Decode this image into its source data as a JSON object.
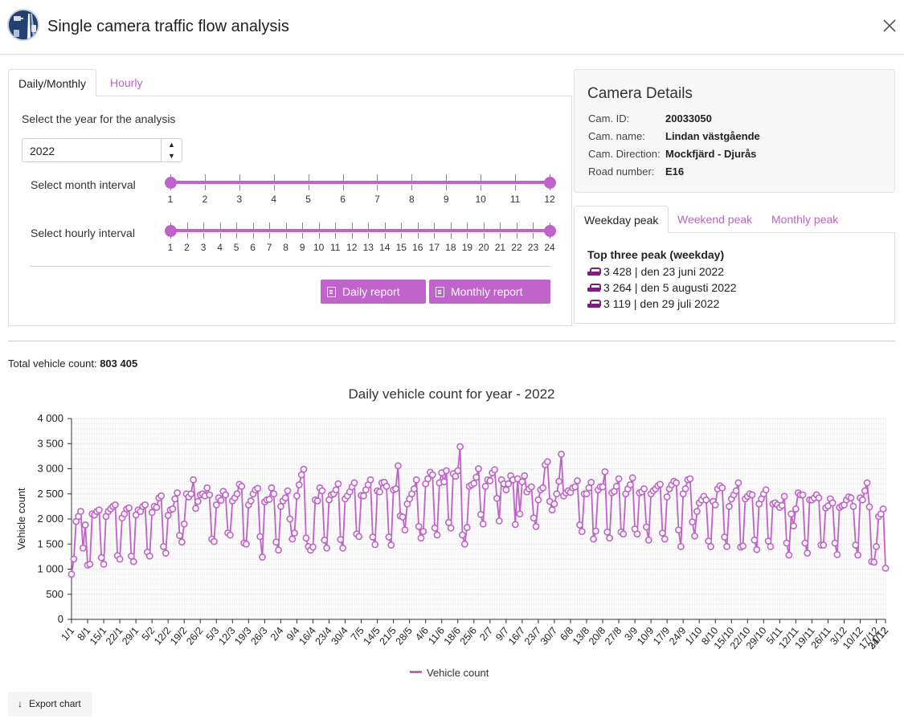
{
  "header": {
    "title": "Single camera traffic flow analysis",
    "logo_icon": "traffic-camera-logo-icon",
    "close_icon": "close-icon"
  },
  "analysis_tabs": [
    {
      "label": "Daily/Monthly",
      "active": true
    },
    {
      "label": "Hourly",
      "active": false
    }
  ],
  "year_section": {
    "label": "Select the year for the analysis",
    "value": "2022"
  },
  "month_slider": {
    "label": "Select month interval",
    "ticks": [
      "1",
      "2",
      "3",
      "4",
      "5",
      "6",
      "7",
      "8",
      "9",
      "10",
      "11",
      "12"
    ],
    "range": [
      1,
      12
    ]
  },
  "hour_slider": {
    "label": "Select hourly interval",
    "ticks": [
      "1",
      "2",
      "3",
      "4",
      "5",
      "6",
      "7",
      "8",
      "9",
      "10",
      "11",
      "12",
      "13",
      "14",
      "15",
      "16",
      "17",
      "18",
      "19",
      "20",
      "21",
      "22",
      "23",
      "24"
    ],
    "range": [
      1,
      24
    ]
  },
  "buttons": {
    "daily_report": "Daily report",
    "monthly_report": "Monthly report"
  },
  "camera_details": {
    "title": "Camera Details",
    "rows": [
      {
        "key": "Cam. ID:",
        "value": "20033050"
      },
      {
        "key": "Cam. name:",
        "value": "Lindan västgående"
      },
      {
        "key": "Cam. Direction:",
        "value": "Mockfjärd - Djurås"
      },
      {
        "key": "Road number:",
        "value": "E16"
      }
    ]
  },
  "peak_tabs": [
    {
      "label": "Weekday peak",
      "active": true
    },
    {
      "label": "Weekend peak",
      "active": false
    },
    {
      "label": "Monthly peak",
      "active": false
    }
  ],
  "peak": {
    "title": "Top three peak (weekday)",
    "entries": [
      "3 428 | den 23 juni 2022",
      "3 264 | den 5 augusti 2022",
      "3 119 | den 29 juli 2022"
    ]
  },
  "total": {
    "label": "Total vehicle count: ",
    "value": "803 405"
  },
  "export_label": "Export chart",
  "colors": {
    "accent": "#bf62c9",
    "car_icon": "#7a1f80"
  },
  "chart_data": {
    "type": "line",
    "title": "Daily vehicle count for year - 2022",
    "ylabel": "Vehicle count",
    "xlabel": "",
    "ylim": [
      0,
      4000
    ],
    "yticks": [
      "0",
      "500",
      "1 000",
      "1 500",
      "2 000",
      "2 500",
      "3 000",
      "3 500",
      "4 000"
    ],
    "x_tick_labels": [
      "1/1",
      "8/1",
      "15/1",
      "22/1",
      "29/1",
      "5/2",
      "12/2",
      "19/2",
      "26/2",
      "5/3",
      "12/3",
      "19/3",
      "26/3",
      "2/4",
      "9/4",
      "16/4",
      "23/4",
      "30/4",
      "7/5",
      "14/5",
      "21/5",
      "28/5",
      "4/6",
      "11/6",
      "18/6",
      "25/6",
      "2/7",
      "9/7",
      "16/7",
      "23/7",
      "30/7",
      "6/8",
      "13/8",
      "20/8",
      "27/8",
      "3/9",
      "10/9",
      "17/9",
      "24/9",
      "1/10",
      "8/10",
      "15/10",
      "22/10",
      "29/10",
      "5/11",
      "12/11",
      "19/11",
      "26/11",
      "3/12",
      "10/12",
      "17/12",
      "24/12",
      "31/12"
    ],
    "legend": "bottom-center",
    "grid": true,
    "series": [
      {
        "name": "Vehicle count",
        "color": "#bf62c9",
        "weekly_values": [
          [
            900,
            1200,
            1950,
            2050,
            2150,
            1420,
            1880
          ],
          [
            1080,
            1100,
            2100,
            2080,
            2150,
            2180,
            1230
          ],
          [
            1100,
            2050,
            2150,
            2200,
            2250,
            2280,
            1270
          ],
          [
            1200,
            2020,
            2100,
            2200,
            2220,
            1260,
            1150
          ],
          [
            2080,
            2180,
            2150,
            2250,
            2280,
            1340,
            1260
          ],
          [
            2130,
            2250,
            2230,
            2420,
            2460,
            1450,
            1320
          ],
          [
            2070,
            2180,
            2200,
            2400,
            2520,
            1670,
            1540
          ],
          [
            1900,
            2500,
            2440,
            2500,
            2780,
            2210,
            2350
          ],
          [
            2480,
            2500,
            2460,
            2620,
            2480,
            1600,
            1550
          ],
          [
            2280,
            2420,
            2370,
            2550,
            2480,
            1720,
            1680
          ],
          [
            2360,
            2420,
            2500,
            2690,
            2650,
            1520,
            1500
          ],
          [
            2280,
            2360,
            2500,
            2580,
            2610,
            1650,
            1240
          ],
          [
            2340,
            2380,
            2390,
            2620,
            2500,
            1540,
            1380
          ],
          [
            2250,
            2360,
            2420,
            2560,
            2000,
            1600,
            1720
          ],
          [
            2460,
            2680,
            2880,
            2990,
            1620,
            1450,
            1380
          ],
          [
            1440,
            2380,
            2360,
            2620,
            2560,
            1580,
            1420
          ],
          [
            2380,
            2480,
            2500,
            2580,
            2700,
            1590,
            1420
          ],
          [
            2400,
            2460,
            2540,
            2640,
            2720,
            1700,
            1650
          ],
          [
            2470,
            2460,
            2580,
            2680,
            2780,
            1640,
            1490
          ],
          [
            2560,
            2540,
            2720,
            2730,
            2650,
            1640,
            1480
          ],
          [
            2580,
            2600,
            3060,
            2060,
            2040,
            1780,
            2300
          ],
          [
            2400,
            2500,
            2600,
            2780,
            1850,
            1620,
            1750
          ],
          [
            2700,
            2800,
            2930,
            2880,
            1820,
            1680,
            2720
          ],
          [
            2920,
            2740,
            2960,
            1930,
            1820,
            2900,
            2850
          ],
          [
            2960,
            3440,
            1680,
            1500,
            1830,
            2650,
            2680
          ],
          [
            2710,
            2830,
            3000,
            2090,
            1900,
            2650,
            2780
          ],
          [
            2760,
            2920,
            2980,
            2410,
            1960,
            2780,
            2700
          ],
          [
            2580,
            2700,
            2860,
            2780,
            1890,
            2800,
            2100
          ],
          [
            2740,
            2860,
            2540,
            2600,
            2640,
            2020,
            1850
          ],
          [
            2380,
            2580,
            2620,
            3080,
            3140,
            2350,
            2180
          ],
          [
            2300,
            2500,
            2750,
            3290,
            2460,
            2520,
            2560
          ],
          [
            2530,
            2620,
            2640,
            2760,
            1880,
            1750,
            2500
          ],
          [
            2500,
            2620,
            2730,
            1600,
            1760,
            2580,
            2640
          ],
          [
            2640,
            2940,
            1740,
            1620,
            2520,
            2550,
            2650
          ],
          [
            2800,
            1740,
            1700,
            2500,
            2600,
            2680,
            2820
          ],
          [
            1800,
            1700,
            2520,
            2540,
            2600,
            1840,
            1580
          ],
          [
            2500,
            2560,
            2600,
            2660,
            2690,
            1720,
            1600
          ],
          [
            2440,
            2600,
            2680,
            2750,
            2720,
            1780,
            1450
          ],
          [
            2500,
            2600,
            2780,
            2800,
            1940,
            1660,
            2150
          ],
          [
            2320,
            2380,
            2450,
            2380,
            1560,
            1450,
            2350
          ],
          [
            2280,
            2600,
            2660,
            2620,
            1640,
            1450,
            2250
          ],
          [
            2400,
            2480,
            2560,
            2720,
            1440,
            1460,
            2400
          ],
          [
            2450,
            2500,
            2480,
            1580,
            1390,
            2300,
            2400
          ],
          [
            2500,
            2580,
            1560,
            1450,
            2300,
            2320,
            2280
          ],
          [
            2230,
            2270,
            2450,
            1520,
            1280,
            2100,
            1860
          ],
          [
            2200,
            2520,
            2480,
            2480,
            1520,
            1320,
            2380
          ],
          [
            2380,
            2420,
            2480,
            2420,
            1480,
            1480,
            2220
          ],
          [
            2260,
            2400,
            2320,
            1520,
            1290,
            2230,
            2260
          ],
          [
            2280,
            2380,
            2440,
            2420,
            2250,
            1480,
            1280
          ],
          [
            2420,
            2380,
            2560,
            2720,
            2240,
            1150,
            1140
          ],
          [
            1450,
            2050,
            2100,
            2200,
            1020
          ]
        ]
      }
    ]
  }
}
